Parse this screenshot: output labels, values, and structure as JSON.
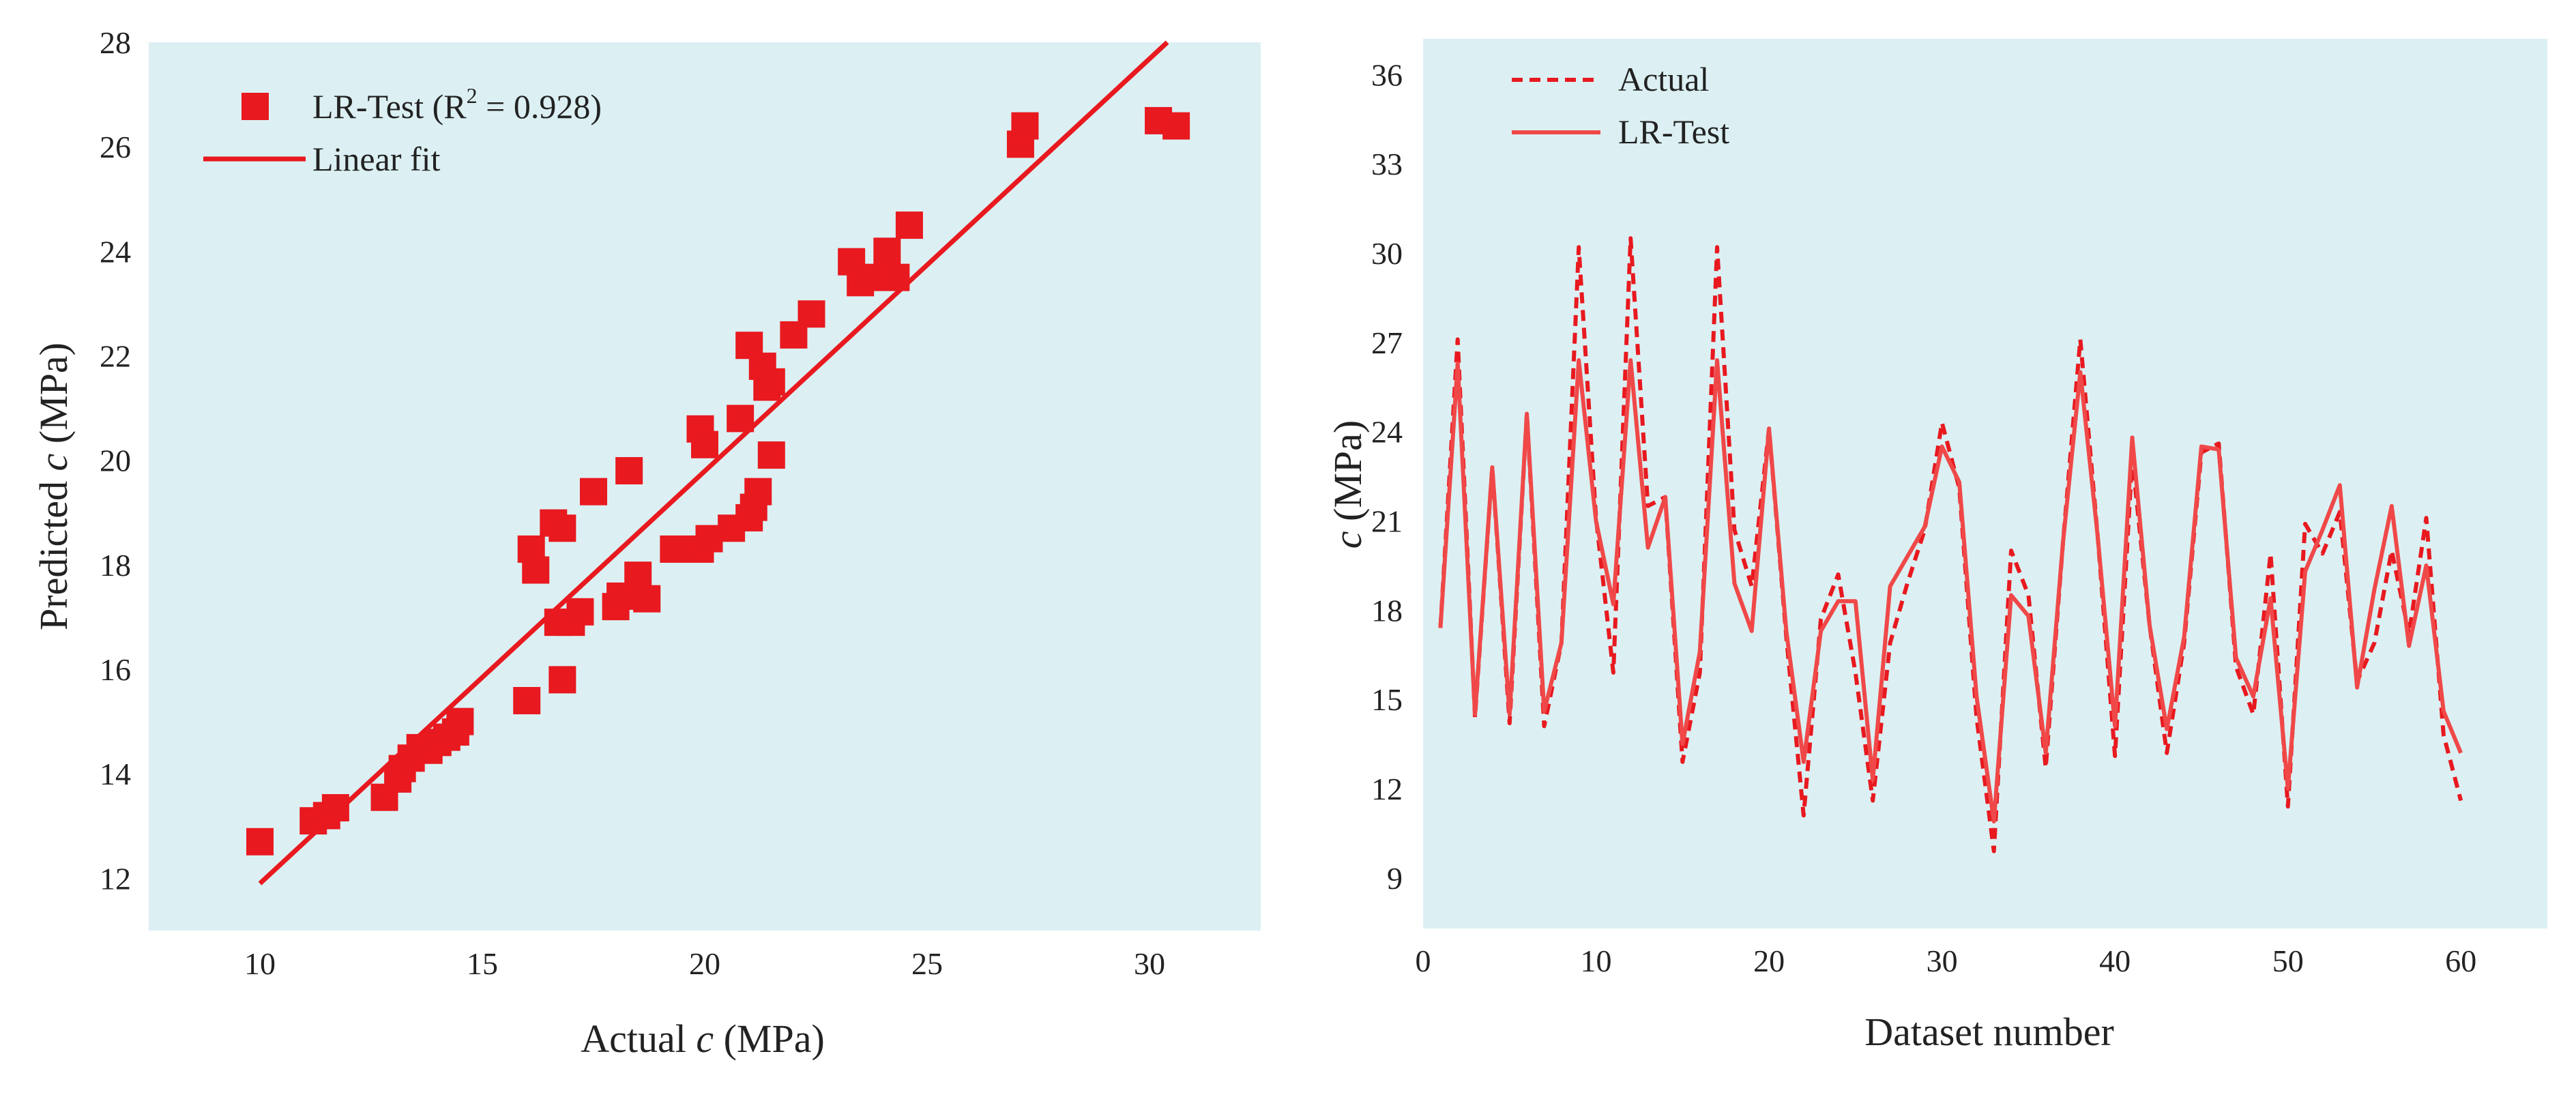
{
  "colors": {
    "plot_bg": "#dcf0f3",
    "series": "#e8191f",
    "series_light": "#f04848",
    "text": "#222222"
  },
  "chart_data": [
    {
      "type": "scatter",
      "title": "",
      "xlabel_prefix": "Actual ",
      "xlabel_var": "c",
      "xlabel_suffix": " (MPa)",
      "ylabel_prefix": "Predicted ",
      "ylabel_var": "c",
      "ylabel_suffix": " (MPa)",
      "xlim": [
        7.5,
        32.5
      ],
      "ylim": [
        11,
        28
      ],
      "xticks": [
        "10",
        "15",
        "20",
        "25",
        "30"
      ],
      "yticks": [
        "12",
        "14",
        "16",
        "18",
        "20",
        "22",
        "24",
        "26",
        "28"
      ],
      "legend_scatter_prefix": "LR-Test (R",
      "legend_scatter_sup": "2",
      "legend_scatter_suffix": " = 0.928)",
      "legend_fit": "Linear fit",
      "fit_line": {
        "x": [
          10,
          30.4
        ],
        "y": [
          11.9,
          28.0
        ]
      },
      "points": [
        [
          10.0,
          12.7
        ],
        [
          11.2,
          13.1
        ],
        [
          11.5,
          13.2
        ],
        [
          11.7,
          13.35
        ],
        [
          12.8,
          13.55
        ],
        [
          13.1,
          13.9
        ],
        [
          13.2,
          14.1
        ],
        [
          13.4,
          14.3
        ],
        [
          13.6,
          14.5
        ],
        [
          13.8,
          14.45
        ],
        [
          14.0,
          14.6
        ],
        [
          14.2,
          14.7
        ],
        [
          14.4,
          14.8
        ],
        [
          14.5,
          15.0
        ],
        [
          16.0,
          15.4
        ],
        [
          16.8,
          15.8
        ],
        [
          16.7,
          16.9
        ],
        [
          17.0,
          16.9
        ],
        [
          17.2,
          17.1
        ],
        [
          18.0,
          17.2
        ],
        [
          18.1,
          17.4
        ],
        [
          18.5,
          17.8
        ],
        [
          18.7,
          17.35
        ],
        [
          19.3,
          18.3
        ],
        [
          16.1,
          18.3
        ],
        [
          16.2,
          17.9
        ],
        [
          16.6,
          18.8
        ],
        [
          16.8,
          18.7
        ],
        [
          17.5,
          19.4
        ],
        [
          18.3,
          19.8
        ],
        [
          19.9,
          18.3
        ],
        [
          20.1,
          18.5
        ],
        [
          20.6,
          18.7
        ],
        [
          21.0,
          18.9
        ],
        [
          21.1,
          19.1
        ],
        [
          21.2,
          19.4
        ],
        [
          19.9,
          20.6
        ],
        [
          20.0,
          20.3
        ],
        [
          20.8,
          20.8
        ],
        [
          21.5,
          20.1
        ],
        [
          21.0,
          22.2
        ],
        [
          21.3,
          21.8
        ],
        [
          21.4,
          21.4
        ],
        [
          21.5,
          21.5
        ],
        [
          22.0,
          22.4
        ],
        [
          22.4,
          22.8
        ],
        [
          23.3,
          23.8
        ],
        [
          23.5,
          23.4
        ],
        [
          23.7,
          23.5
        ],
        [
          24.1,
          24.0
        ],
        [
          24.3,
          23.5
        ],
        [
          24.6,
          24.5
        ],
        [
          27.1,
          26.05
        ],
        [
          27.2,
          26.4
        ],
        [
          30.2,
          26.5
        ],
        [
          30.6,
          26.4
        ]
      ]
    },
    {
      "type": "line",
      "title": "",
      "xlabel": "Dataset number",
      "ylabel_var": "c",
      "ylabel_suffix": " (MPa)",
      "xlim": [
        0,
        65
      ],
      "ylim": [
        7.3,
        37.2
      ],
      "xticks": [
        "0",
        "10",
        "20",
        "30",
        "40",
        "50",
        "60"
      ],
      "yticks": [
        "9",
        "12",
        "15",
        "18",
        "21",
        "24",
        "27",
        "30",
        "33",
        "36"
      ],
      "x": [
        1,
        2,
        3,
        4,
        5,
        6,
        7,
        8,
        9,
        10,
        11,
        12,
        13,
        14,
        15,
        16,
        17,
        18,
        19,
        20,
        21,
        22,
        23,
        24,
        25,
        26,
        27,
        28,
        29,
        30,
        31,
        32,
        33,
        34,
        35,
        36,
        37,
        38,
        39,
        40,
        41,
        42,
        43,
        44,
        45,
        46,
        47,
        48,
        49,
        50,
        51,
        52,
        53,
        54,
        55,
        56,
        57,
        58,
        59,
        60
      ],
      "series": [
        {
          "name": "Actual",
          "style": "dashed",
          "values": [
            17.4,
            27.1,
            14.4,
            22.8,
            14.2,
            24.6,
            14.1,
            16.9,
            30.2,
            21.1,
            15.9,
            30.5,
            21.5,
            21.8,
            12.9,
            15.9,
            30.2,
            20.7,
            18.8,
            24.1,
            17.1,
            11.1,
            17.7,
            19.2,
            15.9,
            11.6,
            16.9,
            18.9,
            20.7,
            24.3,
            22.1,
            14.4,
            9.9,
            20.0,
            18.5,
            12.7,
            20.3,
            27.1,
            20.5,
            13.1,
            23.1,
            17.5,
            13.2,
            16.9,
            23.3,
            23.6,
            16.1,
            14.5,
            19.9,
            11.4,
            20.9,
            19.9,
            21.3,
            15.6,
            16.9,
            20.0,
            17.2,
            21.1,
            13.8,
            11.6
          ]
        },
        {
          "name": "LR-Test",
          "style": "solid",
          "values": [
            17.4,
            26.3,
            14.5,
            22.8,
            14.5,
            24.6,
            14.6,
            16.9,
            26.4,
            21.0,
            18.2,
            26.4,
            20.1,
            21.8,
            13.5,
            16.6,
            26.4,
            18.9,
            17.3,
            24.1,
            17.3,
            12.9,
            17.3,
            18.3,
            18.3,
            12.3,
            18.8,
            19.8,
            20.8,
            23.5,
            22.3,
            15.1,
            10.9,
            18.5,
            17.8,
            13.2,
            20.3,
            26.0,
            20.5,
            14.1,
            23.8,
            17.5,
            14.0,
            17.1,
            23.5,
            23.4,
            16.4,
            15.1,
            18.4,
            12.0,
            19.3,
            20.7,
            22.2,
            15.4,
            18.7,
            21.5,
            16.8,
            19.5,
            14.6,
            13.2
          ]
        }
      ],
      "legend_actual": "Actual",
      "legend_lr": "LR-Test"
    }
  ]
}
